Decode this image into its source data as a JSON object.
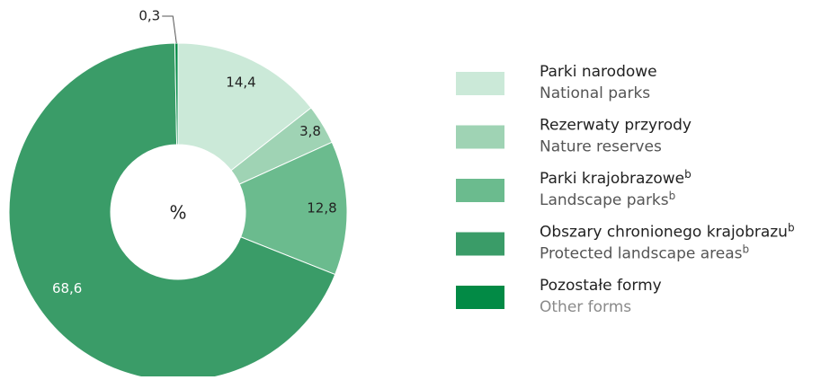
{
  "chart_data": {
    "type": "pie",
    "center_label": "%",
    "categories": [
      "Parki narodowe",
      "Rezerwaty przyrody",
      "Parki krajobrazowe",
      "Obszary chronionego krajobrazu",
      "Pozostałe formy"
    ],
    "categories_en": [
      "National parks",
      "Nature reserves",
      "Landscape parks",
      "Protected landscape areas",
      "Other forms"
    ],
    "footnotes": {
      "2": "b",
      "3": "b"
    },
    "values": [
      14.4,
      3.8,
      12.8,
      68.6,
      0.3
    ],
    "value_labels": [
      "14,4",
      "3,8",
      "12,8",
      "68,6",
      "0,3"
    ],
    "colors": [
      "#cbe9d8",
      "#9fd3b4",
      "#6bbb8e",
      "#3a9c68",
      "#028a45"
    ]
  }
}
